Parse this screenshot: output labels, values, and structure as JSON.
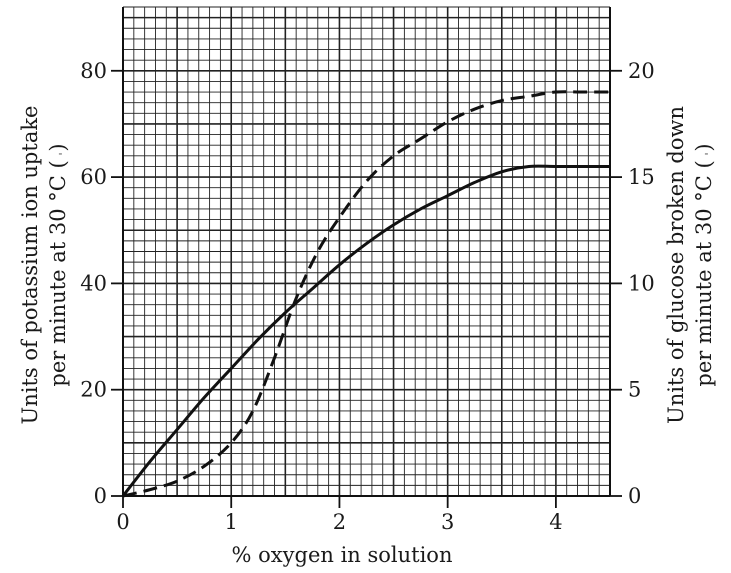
{
  "chart_data": {
    "type": "line",
    "xlabel": "% oxygen in solution",
    "ylabel_left": {
      "line1": "Units of potassium ion uptake",
      "line2": "per minute at 30 °C (",
      "closing": ")"
    },
    "ylabel_right": {
      "line1": "Units of glucose broken down",
      "line2": "per minute at 30 °C (",
      "closing": ")"
    },
    "xlim": [
      0,
      4.5
    ],
    "ylim_left": [
      0,
      80
    ],
    "ylim_right": [
      0,
      20
    ],
    "x_ticks": [
      "0",
      "1",
      "2",
      "3",
      "4"
    ],
    "y_left_ticks": [
      "0",
      "20",
      "40",
      "60",
      "80"
    ],
    "y_right_ticks": [
      "0",
      "5",
      "10",
      "15",
      "20"
    ],
    "grid": true,
    "series": [
      {
        "axis": "left",
        "style": "solid",
        "x": [
          0,
          0.25,
          0.5,
          0.75,
          1.0,
          1.25,
          1.5,
          1.75,
          2.0,
          2.25,
          2.5,
          2.75,
          3.0,
          3.25,
          3.5,
          3.75,
          4.0,
          4.25,
          4.5
        ],
        "y": [
          0,
          6.5,
          12.5,
          18.5,
          24,
          29.5,
          34.5,
          39,
          43.5,
          47.5,
          51,
          54,
          56.5,
          59,
          61,
          62,
          62,
          62,
          62
        ]
      },
      {
        "axis": "right",
        "style": "dashed",
        "x": [
          0,
          0.25,
          0.5,
          0.75,
          1.0,
          1.2,
          1.4,
          1.6,
          1.8,
          2.0,
          2.25,
          2.5,
          2.75,
          3.0,
          3.25,
          3.5,
          3.75,
          4.0,
          4.25,
          4.5
        ],
        "y": [
          0,
          0.3,
          0.7,
          1.4,
          2.5,
          4.0,
          6.5,
          9.3,
          11.5,
          13.1,
          14.8,
          16.0,
          16.8,
          17.6,
          18.2,
          18.6,
          18.8,
          19.0,
          19.0,
          19.0
        ]
      }
    ]
  }
}
